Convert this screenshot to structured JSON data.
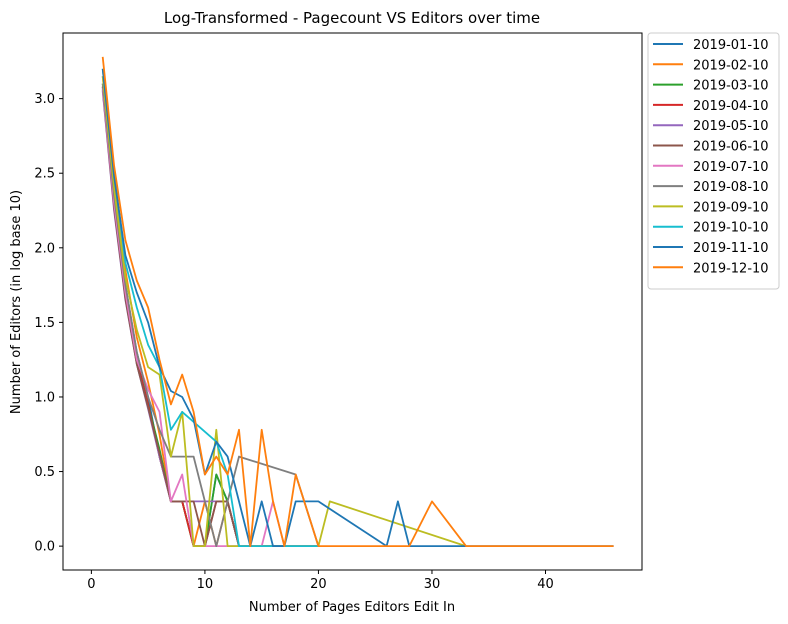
{
  "chart_data": {
    "type": "line",
    "title": "Log-Transformed - Pagecount VS Editors over time",
    "xlabel": "Number of Pages Editors Edit In",
    "ylabel": "Number of Editors (in log base 10)",
    "xlim": [
      -2.5,
      48.5
    ],
    "ylim": [
      -0.16,
      3.44
    ],
    "xticks": [
      0,
      10,
      20,
      30,
      40
    ],
    "yticks": [
      0.0,
      0.5,
      1.0,
      1.5,
      2.0,
      2.5,
      3.0
    ],
    "ytick_labels": [
      "0.0",
      "0.5",
      "1.0",
      "1.5",
      "2.0",
      "2.5",
      "3.0"
    ],
    "legend_position": "outside-right-top",
    "grid": false,
    "series": [
      {
        "name": "2019-01-10",
        "color": "#1f77b4",
        "x": [
          1,
          2,
          3,
          4,
          5,
          6,
          7,
          8,
          9,
          10,
          11,
          12,
          13,
          14,
          15,
          16,
          17,
          18,
          20
        ],
        "y": [
          3.08,
          2.35,
          1.75,
          1.3,
          1.0,
          0.6,
          0.3,
          0.3,
          0.0,
          0.0,
          0.48,
          0.3,
          0.0,
          0.0,
          0.0,
          0.0,
          0.0,
          0.0,
          0.0
        ]
      },
      {
        "name": "2019-02-10",
        "color": "#ff7f0e",
        "x": [
          1,
          2,
          3,
          4,
          5,
          6,
          7,
          8,
          9,
          10,
          11,
          12,
          13,
          14,
          15,
          16,
          17,
          18,
          20
        ],
        "y": [
          3.15,
          2.45,
          1.85,
          1.4,
          1.1,
          0.75,
          0.3,
          0.3,
          0.0,
          0.3,
          0.0,
          0.3,
          0.0,
          0.0,
          0.0,
          0.0,
          0.0,
          0.0,
          0.0
        ]
      },
      {
        "name": "2019-03-10",
        "color": "#2ca02c",
        "x": [
          1,
          2,
          3,
          4,
          5,
          6,
          7,
          8,
          9,
          10,
          11,
          12,
          13,
          14,
          15,
          16,
          17,
          18,
          20
        ],
        "y": [
          3.1,
          2.3,
          1.7,
          1.25,
          0.95,
          0.65,
          0.3,
          0.3,
          0.0,
          0.0,
          0.48,
          0.3,
          0.0,
          0.0,
          0.0,
          0.0,
          0.0,
          0.0,
          0.0
        ]
      },
      {
        "name": "2019-04-10",
        "color": "#d62728",
        "x": [
          1,
          2,
          3,
          4,
          5,
          6,
          7,
          8,
          9,
          10,
          11,
          12,
          13,
          14,
          15,
          16,
          17,
          18,
          20
        ],
        "y": [
          3.08,
          2.28,
          1.68,
          1.25,
          0.95,
          0.6,
          0.3,
          0.3,
          0.0,
          0.0,
          0.3,
          0.3,
          0.0,
          0.0,
          0.0,
          0.0,
          0.0,
          0.0,
          0.0
        ]
      },
      {
        "name": "2019-05-10",
        "color": "#9467bd",
        "x": [
          1,
          2,
          3,
          4,
          5,
          6,
          7,
          8,
          9,
          10,
          11,
          12,
          13,
          14,
          15,
          16,
          17,
          18,
          20
        ],
        "y": [
          3.05,
          2.25,
          1.65,
          1.22,
          0.92,
          0.6,
          0.3,
          0.3,
          0.3,
          0.3,
          0.3,
          0.3,
          0.0,
          0.0,
          0.0,
          0.0,
          0.0,
          0.0,
          0.0
        ]
      },
      {
        "name": "2019-06-10",
        "color": "#8c564b",
        "x": [
          1,
          2,
          3,
          4,
          5,
          6,
          7,
          8,
          9,
          10,
          11,
          12,
          13,
          14,
          15,
          16,
          17,
          18,
          20
        ],
        "y": [
          3.06,
          2.27,
          1.66,
          1.22,
          0.93,
          0.62,
          0.3,
          0.3,
          0.3,
          0.0,
          0.3,
          0.3,
          0.0,
          0.0,
          0.0,
          0.0,
          0.0,
          0.0,
          0.0
        ]
      },
      {
        "name": "2019-07-10",
        "color": "#e377c2",
        "x": [
          1,
          2,
          3,
          4,
          5,
          6,
          7,
          8,
          9,
          10,
          11,
          12,
          13,
          14,
          15,
          16,
          17,
          18,
          20
        ],
        "y": [
          3.07,
          2.3,
          1.7,
          1.25,
          1.05,
          0.9,
          0.3,
          0.48,
          0.0,
          0.0,
          0.0,
          0.0,
          0.0,
          0.0,
          0.0,
          0.3,
          0.0,
          0.0,
          0.0
        ]
      },
      {
        "name": "2019-08-10",
        "color": "#7f7f7f",
        "x": [
          1,
          2,
          3,
          4,
          5,
          6,
          7,
          8,
          9,
          10,
          11,
          12,
          13,
          18,
          20
        ],
        "y": [
          3.1,
          2.35,
          1.75,
          1.3,
          1.0,
          0.78,
          0.6,
          0.6,
          0.6,
          0.3,
          0.0,
          0.3,
          0.6,
          0.48,
          0.0
        ]
      },
      {
        "name": "2019-09-10",
        "color": "#bcbd22",
        "x": [
          1,
          2,
          3,
          4,
          5,
          6,
          7,
          8,
          9,
          10,
          11,
          12,
          13,
          14,
          20,
          21,
          33
        ],
        "y": [
          3.15,
          2.4,
          1.8,
          1.45,
          1.2,
          1.15,
          0.6,
          0.9,
          0.0,
          0.0,
          0.78,
          0.0,
          0.0,
          0.0,
          0.0,
          0.3,
          0.0
        ]
      },
      {
        "name": "2019-10-10",
        "color": "#17becf",
        "x": [
          1,
          2,
          3,
          4,
          5,
          6,
          7,
          8,
          11,
          12,
          13,
          14,
          16,
          20
        ],
        "y": [
          3.2,
          2.5,
          1.9,
          1.6,
          1.35,
          1.2,
          0.78,
          0.9,
          0.7,
          0.48,
          0.0,
          0.0,
          0.0,
          0.0
        ]
      },
      {
        "name": "2019-11-10",
        "color": "#1f77b4",
        "x": [
          1,
          2,
          3,
          4,
          5,
          6,
          7,
          8,
          9,
          10,
          11,
          12,
          13,
          14,
          15,
          16,
          17,
          18,
          20,
          26,
          27,
          28,
          33,
          40,
          46
        ],
        "y": [
          3.2,
          2.48,
          1.95,
          1.7,
          1.5,
          1.2,
          1.04,
          1.0,
          0.85,
          0.48,
          0.7,
          0.6,
          0.3,
          0.0,
          0.3,
          0.0,
          0.0,
          0.3,
          0.3,
          0.0,
          0.3,
          0.0,
          0.0,
          0.0,
          0.0
        ]
      },
      {
        "name": "2019-12-10",
        "color": "#ff7f0e",
        "x": [
          1,
          2,
          3,
          4,
          5,
          6,
          7,
          8,
          9,
          10,
          11,
          12,
          13,
          14,
          15,
          16,
          17,
          18,
          20,
          28,
          30,
          33,
          39,
          46
        ],
        "y": [
          3.28,
          2.55,
          2.05,
          1.78,
          1.6,
          1.25,
          0.95,
          1.15,
          0.9,
          0.48,
          0.6,
          0.48,
          0.78,
          0.0,
          0.78,
          0.3,
          0.0,
          0.48,
          0.0,
          0.0,
          0.3,
          0.0,
          0.0,
          0.0
        ]
      }
    ]
  }
}
